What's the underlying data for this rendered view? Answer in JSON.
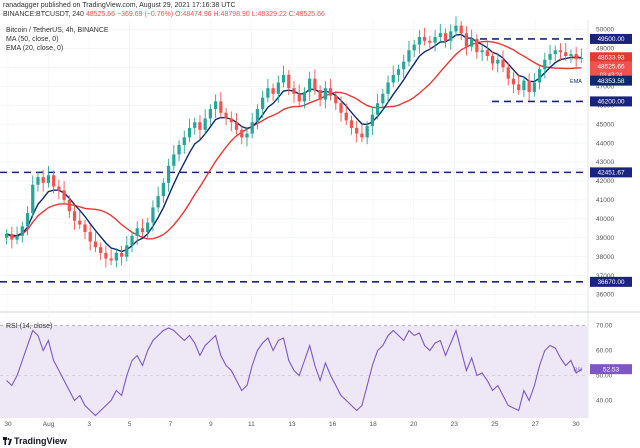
{
  "header": {
    "line1": "ranadagger published on TradingView.com, August 29, 2021 17:16:38 UTC",
    "symbol": "BINANCE:BTCUSDT, 240",
    "price": "48525.66",
    "change": "−369.69 (−0.76%)",
    "ohlc": "O:48474.96 H:48798.90 L:48329.22 C:48525.66"
  },
  "legend": {
    "title": "Bitcoin / TetherUS, 4h, BINANCE",
    "ma": "MA (50, close, 0)",
    "ema": "EMA (20, close, 0)"
  },
  "rsi_label": "RSI (14, close)",
  "footer": {
    "brand": "TradingView"
  },
  "colors": {
    "up": "#26a69a",
    "down": "#ef5350",
    "ma": "#e53935",
    "ema": "#0d2a6e",
    "rsi": "#7e57c2",
    "rsi_band": "#ede7f6",
    "level": "#1a237e"
  },
  "chart_data": [
    {
      "type": "candlestick",
      "title": "Bitcoin / TetherUS, 4h, BINANCE",
      "x_tick_labels": [
        "30",
        "Aug",
        "3",
        "5",
        "7",
        "9",
        "11",
        "13",
        "16",
        "18",
        "20",
        "23",
        "25",
        "27",
        "30"
      ],
      "y_ticks": [
        36000,
        37000,
        38000,
        39000,
        40000,
        41000,
        42000,
        43000,
        44000,
        45000,
        46000,
        47000,
        48000,
        49000,
        50000
      ],
      "ylim": [
        35500,
        50500
      ],
      "series": [
        {
          "name": "MA (50, close, 0)",
          "value_label": "48533.93"
        },
        {
          "name": "EMA (20, close, 0)",
          "value_label": "48353.58"
        }
      ],
      "price_labels": {
        "last": "48525.66",
        "countdown": "03:43:24"
      },
      "horizontal_levels": [
        {
          "value": 49500,
          "label": "49500.00"
        },
        {
          "value": 46200,
          "label": "46200.00"
        },
        {
          "value": 42451.67,
          "label": "42451.67"
        },
        {
          "value": 36670,
          "label": "36670.00"
        }
      ],
      "closes": [
        39200,
        38900,
        39100,
        39600,
        40300,
        41800,
        42200,
        41900,
        42300,
        41700,
        41500,
        41000,
        40400,
        39900,
        39700,
        39300,
        38800,
        38500,
        38200,
        37900,
        37800,
        38200,
        38000,
        38600,
        39100,
        39500,
        39300,
        39800,
        40600,
        41200,
        41900,
        42800,
        43400,
        43900,
        44300,
        44800,
        45100,
        44700,
        45300,
        45800,
        46200,
        45600,
        45300,
        45100,
        44700,
        44300,
        44500,
        45100,
        45800,
        46400,
        46900,
        46600,
        47200,
        47600,
        46900,
        46600,
        46200,
        46700,
        47400,
        46800,
        46300,
        46900,
        46500,
        46100,
        45600,
        45200,
        44800,
        44500,
        44300,
        44900,
        45500,
        46100,
        46600,
        47200,
        47600,
        47900,
        48300,
        48900,
        49200,
        49600,
        49400,
        49300,
        49600,
        49800,
        49400,
        49900,
        50200,
        49800,
        49100,
        49500,
        48800,
        48900,
        48600,
        48200,
        48400,
        48000,
        47400,
        47100,
        46800,
        47300,
        46700,
        47200,
        47900,
        48400,
        48700,
        48900,
        48800,
        48600,
        48700,
        48500,
        48500
      ],
      "opens": [
        39000,
        39200,
        38900,
        39100,
        39600,
        40300,
        41800,
        42200,
        41900,
        42300,
        41700,
        41500,
        41000,
        40400,
        39900,
        39700,
        39300,
        38800,
        38500,
        38200,
        37900,
        37800,
        38200,
        38000,
        38600,
        39100,
        39500,
        39300,
        39800,
        40600,
        41200,
        41900,
        42800,
        43400,
        43900,
        44300,
        44800,
        45100,
        44700,
        45300,
        45800,
        46200,
        45600,
        45300,
        45100,
        44700,
        44300,
        44500,
        45100,
        45800,
        46400,
        46900,
        46600,
        47200,
        47600,
        46900,
        46600,
        46200,
        46700,
        47400,
        46800,
        46300,
        46900,
        46500,
        46100,
        45600,
        45200,
        44800,
        44500,
        44300,
        44900,
        45500,
        46100,
        46600,
        47200,
        47600,
        47900,
        48300,
        48900,
        49200,
        49600,
        49400,
        49300,
        49600,
        49800,
        49400,
        49900,
        50200,
        49800,
        49100,
        49500,
        48800,
        48900,
        48600,
        48200,
        48400,
        48000,
        47400,
        47100,
        46800,
        47300,
        46700,
        47200,
        47900,
        48400,
        48700,
        48900,
        48800,
        48600,
        48700,
        48475
      ]
    },
    {
      "type": "line",
      "title": "RSI (14, close)",
      "y_ticks": [
        40,
        50,
        60,
        70
      ],
      "ylim": [
        33,
        73
      ],
      "band": [
        30,
        70
      ],
      "series": [
        {
          "name": "RSI (14, close)",
          "value_label": "52.53",
          "values": [
            48,
            46,
            50,
            56,
            62,
            68,
            66,
            60,
            64,
            56,
            52,
            48,
            44,
            40,
            42,
            38,
            36,
            34,
            36,
            38,
            40,
            44,
            42,
            50,
            56,
            58,
            54,
            60,
            64,
            66,
            68,
            69,
            68,
            66,
            64,
            66,
            63,
            58,
            62,
            64,
            66,
            58,
            54,
            52,
            48,
            44,
            46,
            54,
            60,
            63,
            65,
            60,
            64,
            65,
            56,
            52,
            50,
            56,
            62,
            54,
            48,
            55,
            50,
            46,
            42,
            40,
            38,
            36,
            38,
            46,
            54,
            60,
            62,
            66,
            68,
            66,
            64,
            68,
            66,
            67,
            62,
            60,
            63,
            64,
            58,
            63,
            68,
            60,
            52,
            57,
            50,
            51,
            48,
            44,
            46,
            42,
            38,
            37,
            36,
            44,
            40,
            46,
            54,
            60,
            62,
            61,
            57,
            54,
            56,
            51,
            52.53
          ]
        }
      ]
    }
  ]
}
